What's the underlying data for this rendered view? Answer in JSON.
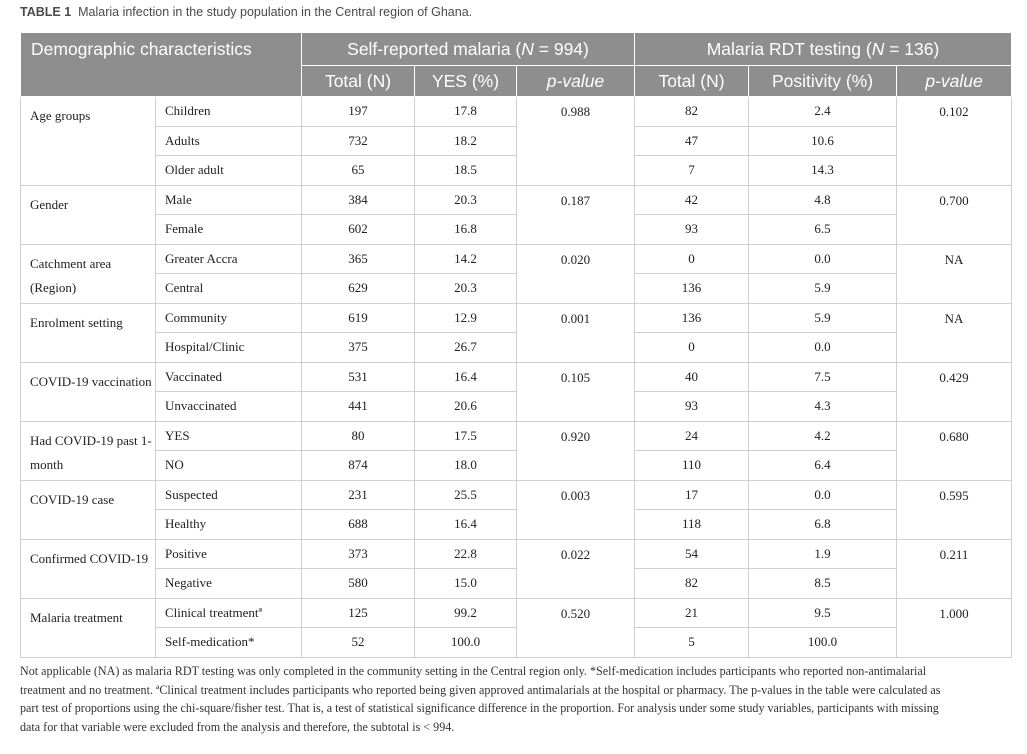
{
  "caption": {
    "label": "TABLE 1",
    "text": "Malaria infection in the study population in the Central region of Ghana."
  },
  "header": {
    "demographic": "Demographic characteristics",
    "self_reported_prefix": "Self-reported malaria (",
    "self_reported_n": "N",
    "self_reported_suffix": " = 994)",
    "rdt_prefix": "Malaria RDT testing (",
    "rdt_n": "N",
    "rdt_suffix": " = 136)",
    "sub": {
      "total_1": "Total (N)",
      "yes_pct": "YES (%)",
      "p_value_1": "p-value",
      "total_2": "Total (N)",
      "positivity": "Positivity (%)",
      "p_value_2": "p-value"
    }
  },
  "groups": [
    {
      "name": "Age groups",
      "p_self": "0.988",
      "p_rdt": "0.102",
      "rows": [
        {
          "cat": "Children",
          "total": "197",
          "yes": "17.8",
          "rdt_total": "82",
          "positivity": "2.4"
        },
        {
          "cat": "Adults",
          "total": "732",
          "yes": "18.2",
          "rdt_total": "47",
          "positivity": "10.6"
        },
        {
          "cat": "Older adult",
          "total": "65",
          "yes": "18.5",
          "rdt_total": "7",
          "positivity": "14.3"
        }
      ]
    },
    {
      "name": "Gender",
      "p_self": "0.187",
      "p_rdt": "0.700",
      "rows": [
        {
          "cat": "Male",
          "total": "384",
          "yes": "20.3",
          "rdt_total": "42",
          "positivity": "4.8"
        },
        {
          "cat": "Female",
          "total": "602",
          "yes": "16.8",
          "rdt_total": "93",
          "positivity": "6.5"
        }
      ]
    },
    {
      "name": "Catchment area (Region)",
      "p_self": "0.020",
      "p_rdt": "NA",
      "rows": [
        {
          "cat": "Greater Accra",
          "total": "365",
          "yes": "14.2",
          "rdt_total": "0",
          "positivity": "0.0"
        },
        {
          "cat": "Central",
          "total": "629",
          "yes": "20.3",
          "rdt_total": "136",
          "positivity": "5.9"
        }
      ]
    },
    {
      "name": "Enrolment setting",
      "p_self": "0.001",
      "p_rdt": "NA",
      "rows": [
        {
          "cat": "Community",
          "total": "619",
          "yes": "12.9",
          "rdt_total": "136",
          "positivity": "5.9"
        },
        {
          "cat": "Hospital/Clinic",
          "total": "375",
          "yes": "26.7",
          "rdt_total": "0",
          "positivity": "0.0"
        }
      ]
    },
    {
      "name": "COVID-19 vaccination",
      "p_self": "0.105",
      "p_rdt": "0.429",
      "rows": [
        {
          "cat": "Vaccinated",
          "total": "531",
          "yes": "16.4",
          "rdt_total": "40",
          "positivity": "7.5"
        },
        {
          "cat": "Unvaccinated",
          "total": "441",
          "yes": "20.6",
          "rdt_total": "93",
          "positivity": "4.3"
        }
      ]
    },
    {
      "name": "Had COVID-19 past 1-month",
      "p_self": "0.920",
      "p_rdt": "0.680",
      "rows": [
        {
          "cat": "YES",
          "total": "80",
          "yes": "17.5",
          "rdt_total": "24",
          "positivity": "4.2"
        },
        {
          "cat": "NO",
          "total": "874",
          "yes": "18.0",
          "rdt_total": "110",
          "positivity": "6.4"
        }
      ]
    },
    {
      "name": "COVID-19 case",
      "p_self": "0.003",
      "p_rdt": "0.595",
      "rows": [
        {
          "cat": "Suspected",
          "total": "231",
          "yes": "25.5",
          "rdt_total": "17",
          "positivity": "0.0"
        },
        {
          "cat": "Healthy",
          "total": "688",
          "yes": "16.4",
          "rdt_total": "118",
          "positivity": "6.8"
        }
      ]
    },
    {
      "name": "Confirmed COVID-19",
      "p_self": "0.022",
      "p_rdt": "0.211",
      "rows": [
        {
          "cat": "Positive",
          "total": "373",
          "yes": "22.8",
          "rdt_total": "54",
          "positivity": "1.9"
        },
        {
          "cat": "Negative",
          "total": "580",
          "yes": "15.0",
          "rdt_total": "82",
          "positivity": "8.5"
        }
      ]
    },
    {
      "name": "Malaria treatment",
      "p_self": "0.520",
      "p_rdt": "1.000",
      "rows": [
        {
          "cat": "Clinical treatmentª",
          "total": "125",
          "yes": "99.2",
          "rdt_total": "21",
          "positivity": "9.5"
        },
        {
          "cat": "Self-medication*",
          "total": "52",
          "yes": "100.0",
          "rdt_total": "5",
          "positivity": "100.0"
        }
      ]
    }
  ],
  "footnote": [
    "Not applicable (NA) as malaria RDT testing was only completed in the community setting in the Central region only. *Self-medication includes participants who reported non-antimalarial",
    "treatment and no treatment. ªClinical treatment includes participants who reported being given approved antimalarials at the hospital or pharmacy. The p-values in the table were calculated as",
    "part test of proportions using the chi-square/fisher test. That is, a test of statistical significance difference in the proportion. For analysis under some study variables, participants with missing",
    "data for that variable were excluded from the analysis and therefore, the subtotal is < 994."
  ]
}
